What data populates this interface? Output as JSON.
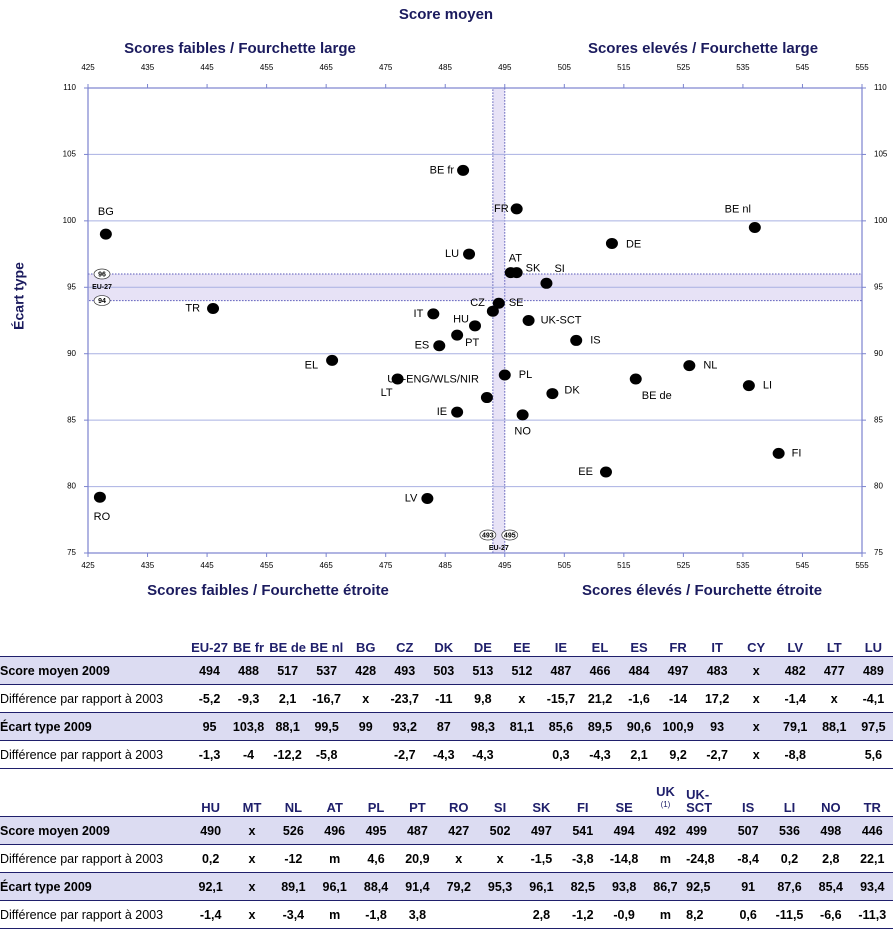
{
  "chart_data": {
    "type": "scatter",
    "title": "Score moyen",
    "top_labels": [
      "Scores faibles / Fourchette large",
      "Scores elevés / Fourchette large"
    ],
    "bottom_labels": [
      "Scores faibles / Fourchette étroite",
      "Scores élevés / Fourchette étroite"
    ],
    "ylabel": "Écart type",
    "xlim": [
      425,
      555
    ],
    "ylim": [
      75,
      110
    ],
    "xticks": [
      425,
      435,
      445,
      455,
      465,
      475,
      485,
      495,
      505,
      515,
      525,
      535,
      545,
      555
    ],
    "yticks": [
      75,
      80,
      85,
      90,
      95,
      100,
      105,
      110
    ],
    "grid": true,
    "color": "#000000",
    "eu27": {
      "label": "EU-27",
      "x": [
        493,
        495
      ],
      "y": [
        94,
        96
      ]
    },
    "points": [
      {
        "label": "BE fr",
        "x": 488,
        "y": 103.8
      },
      {
        "label": "FR",
        "x": 497,
        "y": 100.9
      },
      {
        "label": "BG",
        "x": 428,
        "y": 99
      },
      {
        "label": "BE nl",
        "x": 537,
        "y": 99.5
      },
      {
        "label": "DE",
        "x": 513,
        "y": 98.3
      },
      {
        "label": "LU",
        "x": 489,
        "y": 97.5
      },
      {
        "label": "AT",
        "x": 496,
        "y": 96.1
      },
      {
        "label": "SK",
        "x": 497,
        "y": 96.1
      },
      {
        "label": "SI",
        "x": 502,
        "y": 95.3
      },
      {
        "label": "TR",
        "x": 446,
        "y": 93.4
      },
      {
        "label": "CZ",
        "x": 493,
        "y": 93.2
      },
      {
        "label": "SE",
        "x": 494,
        "y": 93.8
      },
      {
        "label": "IT",
        "x": 483,
        "y": 93
      },
      {
        "label": "HU",
        "x": 490,
        "y": 92.1
      },
      {
        "label": "UK-SCT",
        "x": 499,
        "y": 92.5
      },
      {
        "label": "ES",
        "x": 484,
        "y": 90.6
      },
      {
        "label": "PT",
        "x": 487,
        "y": 91.4
      },
      {
        "label": "IS",
        "x": 507,
        "y": 91
      },
      {
        "label": "EL",
        "x": 466,
        "y": 89.5
      },
      {
        "label": "LT",
        "x": 477,
        "y": 88.1
      },
      {
        "label": "UK-ENG/WLS/NIR",
        "x": 492,
        "y": 86.7
      },
      {
        "label": "PL",
        "x": 495,
        "y": 88.4
      },
      {
        "label": "DK",
        "x": 503,
        "y": 87
      },
      {
        "label": "BE de",
        "x": 517,
        "y": 88.1
      },
      {
        "label": "NL",
        "x": 526,
        "y": 89.1
      },
      {
        "label": "LI",
        "x": 536,
        "y": 87.6
      },
      {
        "label": "IE",
        "x": 487,
        "y": 85.6
      },
      {
        "label": "NO",
        "x": 498,
        "y": 85.4
      },
      {
        "label": "FI",
        "x": 541,
        "y": 82.5
      },
      {
        "label": "EE",
        "x": 512,
        "y": 81.1
      },
      {
        "label": "LV",
        "x": 482,
        "y": 79.1
      },
      {
        "label": "RO",
        "x": 427,
        "y": 79.2
      }
    ]
  },
  "tables": [
    {
      "columns": [
        "EU-27",
        "BE fr",
        "BE de",
        "BE nl",
        "BG",
        "CZ",
        "DK",
        "DE",
        "EE",
        "IE",
        "EL",
        "ES",
        "FR",
        "IT",
        "CY",
        "LV",
        "LT",
        "LU"
      ],
      "rows": [
        {
          "label": "Score moyen 2009",
          "cells": [
            "494",
            "488",
            {
              "text": "517",
              "bold": true
            },
            {
              "text": "537",
              "bold": true
            },
            {
              "text": "428",
              "bold": true
            },
            "493",
            {
              "text": "503",
              "bold": true
            },
            {
              "text": "513",
              "bold": true
            },
            {
              "text": "512",
              "bold": true
            },
            {
              "text": "487",
              "bold": true
            },
            {
              "text": "466",
              "bold": true
            },
            {
              "text": "484",
              "bold": true
            },
            "497",
            {
              "text": "483",
              "bold": true
            },
            "x",
            {
              "text": "482",
              "bold": true
            },
            {
              "text": "477",
              "bold": true
            },
            {
              "text": "489",
              "bold": true
            }
          ]
        },
        {
          "label": "Différence par rapport à 2003",
          "cells": [
            {
              "text": "-5,2",
              "bold": true
            },
            "-9,3",
            "2,1",
            {
              "text": "-16,7",
              "bold": true
            },
            "x",
            {
              "text": "-23,7",
              "bold": true
            },
            {
              "text": "-11",
              "bold": true
            },
            {
              "text": "9,8",
              "bold": true
            },
            "x",
            {
              "text": "-15,7",
              "bold": true
            },
            {
              "text": "21,2",
              "bold": true
            },
            "-1,6",
            {
              "text": "-14",
              "bold": true
            },
            {
              "text": "17,2",
              "bold": true
            },
            "x",
            "-1,4",
            "x",
            "-4,1"
          ]
        },
        {
          "label": "Écart type 2009",
          "cells": [
            "95",
            {
              "text": "103,8",
              "bold": true
            },
            {
              "text": "88,1",
              "bold": true
            },
            {
              "text": "99,5",
              "bold": true
            },
            "99",
            "93,2",
            {
              "text": "87",
              "bold": true
            },
            {
              "text": "98,3",
              "bold": true
            },
            {
              "text": "81,1",
              "bold": true
            },
            {
              "text": "85,6",
              "bold": true
            },
            {
              "text": "89,5",
              "bold": true
            },
            {
              "text": "90,6",
              "bold": true
            },
            {
              "text": "100,9",
              "bold": true
            },
            "93",
            "x",
            {
              "text": "79,1",
              "bold": true
            },
            {
              "text": "88,1",
              "bold": true
            },
            {
              "text": "97,5",
              "bold": true
            }
          ]
        },
        {
          "label": "Différence par rapport à 2003",
          "cells": [
            "-1,3",
            "-4",
            {
              "text": "-12,2",
              "bold": true
            },
            {
              "text": "-5,8",
              "bold": true
            },
            null,
            "-2,7",
            {
              "text": "-4,3",
              "bold": true
            },
            "-4,3",
            null,
            "0,3",
            "-4,3",
            "2,1",
            {
              "text": "9,2",
              "bold": true
            },
            "-2,7",
            "x",
            {
              "text": "-8,8",
              "bold": true
            },
            null,
            {
              "text": "5,6",
              "bold": true
            }
          ]
        }
      ]
    },
    {
      "columns": [
        "HU",
        "MT",
        "NL",
        "AT",
        "PL",
        "PT",
        "RO",
        "SI",
        "SK",
        "FI",
        "SE",
        {
          "text": "UK",
          "note": "(1)"
        },
        "UK-SCT",
        "IS",
        "LI",
        "NO",
        "TR"
      ],
      "rows": [
        {
          "label": "Score moyen 2009",
          "cells": [
            "490",
            "x",
            {
              "text": "526",
              "bold": true
            },
            "496",
            "495",
            {
              "text": "487",
              "bold": true
            },
            {
              "text": "427",
              "bold": true
            },
            {
              "text": "502",
              "bold": true
            },
            "497",
            {
              "text": "541",
              "bold": true
            },
            "494",
            "492",
            "499",
            {
              "text": "507",
              "bold": true
            },
            {
              "text": "536",
              "bold": true
            },
            "498",
            {
              "text": "446",
              "bold": true
            }
          ]
        },
        {
          "label": "Différence par rapport à 2003",
          "cells": [
            "0,2",
            "x",
            {
              "text": "-12",
              "bold": true
            },
            "m",
            "4,6",
            {
              "text": "20,9",
              "bold": true
            },
            "x",
            "x",
            "-1,5",
            "-3,8",
            {
              "text": "-14,8",
              "bold": true
            },
            "m",
            "-24,8",
            {
              "text": "-8,4",
              "bold": true
            },
            "0,2",
            "2,8",
            {
              "text": "22,1",
              "bold": true
            }
          ]
        },
        {
          "label": "Écart type 2009",
          "cells": [
            "92,1",
            "x",
            {
              "text": "89,1",
              "bold": true
            },
            "96,1",
            {
              "text": "88,4",
              "bold": true
            },
            {
              "text": "91,4",
              "bold": true
            },
            {
              "text": "79,2",
              "bold": true
            },
            "95,3",
            "96,1",
            {
              "text": "82,5",
              "bold": true
            },
            "93,8",
            {
              "text": "86,7",
              "bold": true
            },
            "92,5",
            {
              "text": "91",
              "bold": true
            },
            "87,6",
            {
              "text": "85,4",
              "bold": true
            },
            "93,4"
          ]
        },
        {
          "label": "Différence par rapport à 2003",
          "cells": [
            "-1,4",
            "x",
            "-3,4",
            "m",
            "-1,8",
            "3,8",
            null,
            null,
            "2,8",
            "-1,2",
            "-0,9",
            "m",
            {
              "text": "8,2",
              "bold": true
            },
            "0,6",
            "-11,5",
            {
              "text": "-6,6",
              "bold": true
            },
            "-11,3"
          ]
        }
      ]
    }
  ]
}
